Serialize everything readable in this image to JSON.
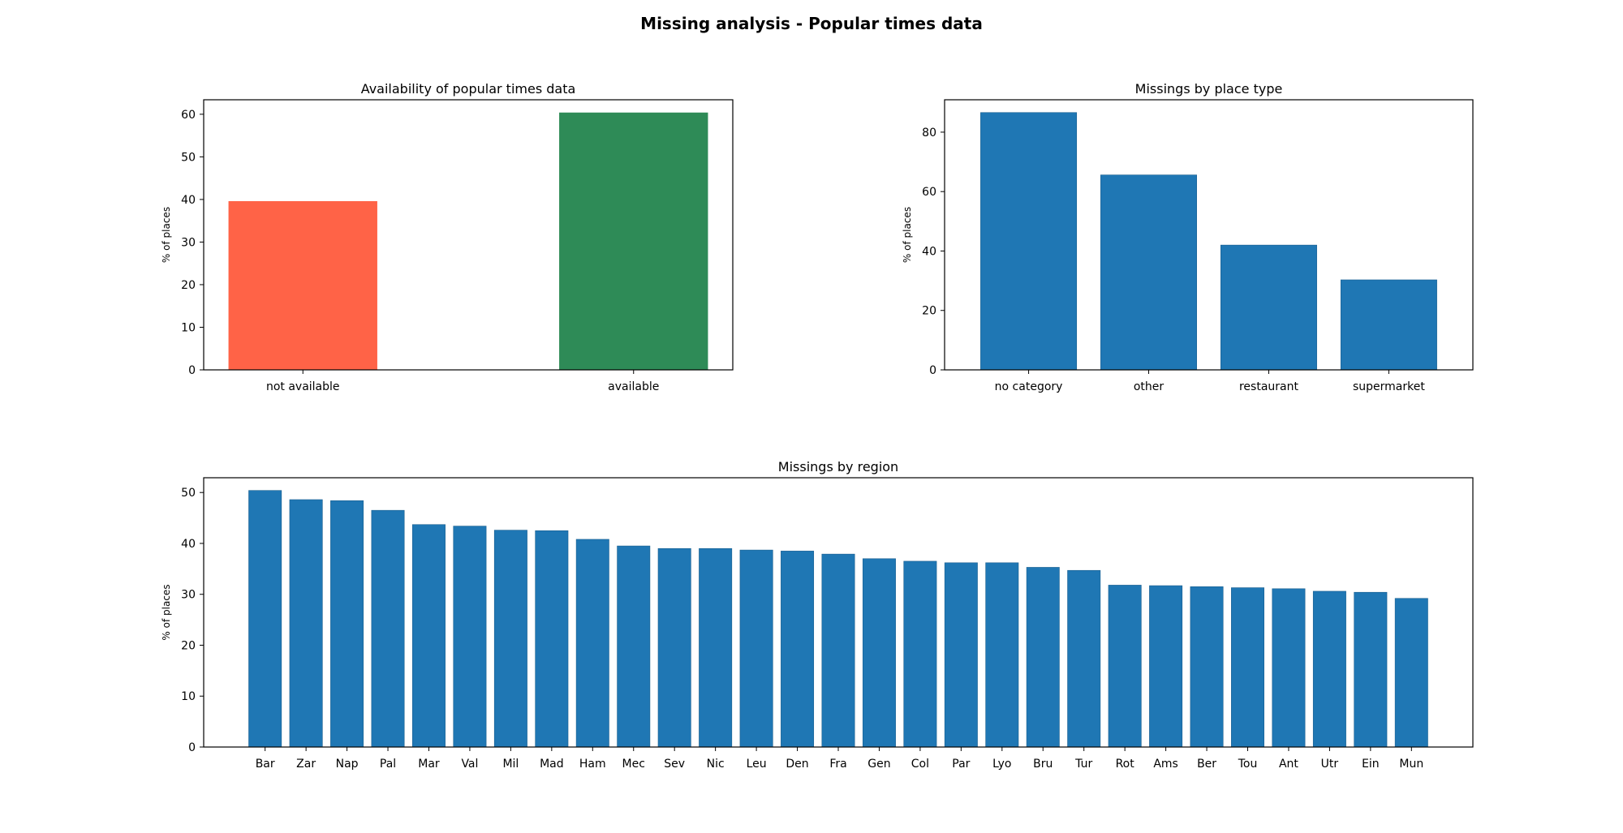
{
  "figure": {
    "title": "Missing analysis - Popular times data"
  },
  "chart_data": [
    {
      "type": "bar",
      "title": "Availability of popular times data",
      "xlabel": "",
      "ylabel": "% of places",
      "categories": [
        "not available",
        "available"
      ],
      "values": [
        39.6,
        60.4
      ],
      "colors": [
        "#ff6347",
        "#2e8b57"
      ],
      "ylim": [
        0,
        63.4
      ],
      "yticks": [
        0,
        10,
        20,
        30,
        40,
        50,
        60
      ],
      "grid": false,
      "legend": "none"
    },
    {
      "type": "bar",
      "title": "Missings by place type",
      "xlabel": "",
      "ylabel": "% of places",
      "categories": [
        "no category",
        "other",
        "restaurant",
        "supermarket"
      ],
      "values": [
        86.6,
        65.6,
        42.0,
        30.3
      ],
      "colors": [
        "#1f77b4"
      ],
      "ylim": [
        0,
        90.9
      ],
      "yticks": [
        0,
        20,
        40,
        60,
        80
      ],
      "grid": false,
      "legend": "none"
    },
    {
      "type": "bar",
      "title": "Missings by region",
      "xlabel": "",
      "ylabel": "% of places",
      "categories": [
        "Bar",
        "Zar",
        "Nap",
        "Pal",
        "Mar",
        "Val",
        "Mil",
        "Mad",
        "Ham",
        "Mec",
        "Sev",
        "Nic",
        "Leu",
        "Den",
        "Fra",
        "Gen",
        "Col",
        "Par",
        "Lyo",
        "Bru",
        "Tur",
        "Rot",
        "Ams",
        "Ber",
        "Tou",
        "Ant",
        "Utr",
        "Ein",
        "Mun"
      ],
      "values": [
        50.4,
        48.6,
        48.4,
        46.5,
        43.7,
        43.4,
        42.6,
        42.5,
        40.8,
        39.5,
        39.0,
        39.0,
        38.7,
        38.5,
        37.9,
        37.0,
        36.5,
        36.2,
        36.2,
        35.3,
        34.7,
        31.8,
        31.7,
        31.5,
        31.3,
        31.1,
        30.6,
        30.4,
        29.2
      ],
      "colors": [
        "#1f77b4"
      ],
      "ylim": [
        0,
        52.9
      ],
      "yticks": [
        0,
        10,
        20,
        30,
        40,
        50
      ],
      "grid": false,
      "legend": "none"
    }
  ]
}
